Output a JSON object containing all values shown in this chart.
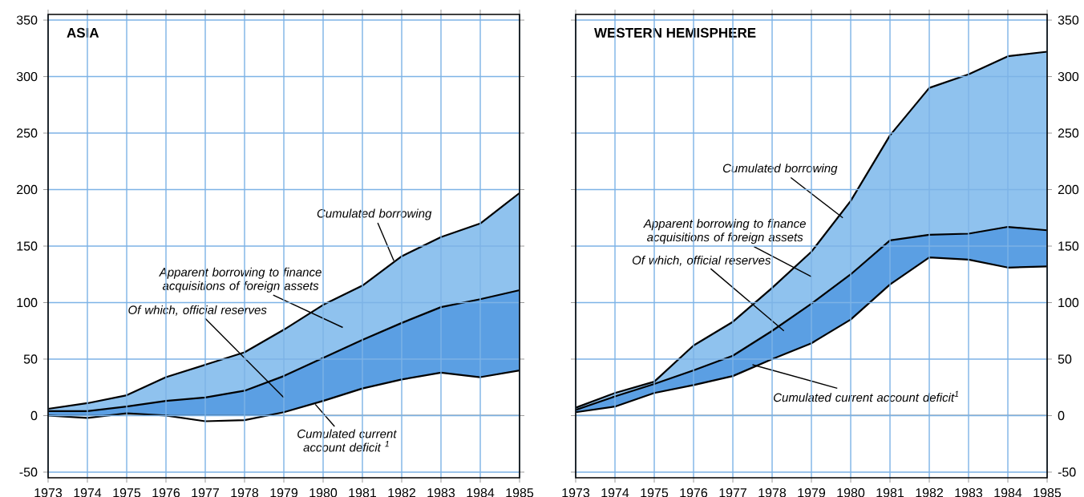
{
  "chart_data": [
    {
      "type": "area",
      "title": "ASIA",
      "x": [
        1973,
        1974,
        1975,
        1976,
        1977,
        1978,
        1979,
        1980,
        1981,
        1982,
        1983,
        1984,
        1985
      ],
      "xlim": [
        1973,
        1985
      ],
      "xticks": [
        1973,
        1974,
        1975,
        1976,
        1977,
        1978,
        1979,
        1980,
        1981,
        1982,
        1983,
        1984,
        1985
      ],
      "ylim": [
        -55,
        355
      ],
      "yticks": [
        -50,
        0,
        50,
        100,
        150,
        200,
        250,
        300,
        350
      ],
      "grid": true,
      "series": [
        {
          "type": "area",
          "color": "#8fc2ee",
          "values": [
            6,
            11,
            18,
            34,
            45,
            56,
            76,
            98,
            115,
            141,
            158,
            170,
            197
          ]
        },
        {
          "type": "area",
          "color": "#5b9fe3",
          "values": [
            4,
            4,
            8,
            13,
            16,
            22,
            35,
            51,
            67,
            82,
            96,
            103,
            111
          ]
        },
        {
          "type": "area",
          "color": "#ffffff",
          "values": [
            0,
            -2,
            2,
            0,
            -5,
            -4,
            3,
            13,
            24,
            32,
            38,
            34,
            40
          ]
        }
      ],
      "ref_lines": [
        {
          "axis": "y",
          "value": 0
        }
      ],
      "annotations": [
        {
          "text": "Cumulated borrowing",
          "x": 1981.8,
          "y": 137
        },
        "Apparent borrowing to finance acquisitions of foreign assets",
        "Of which, official reserves",
        {
          "text": "Cumulated current account deficit $^{1}$",
          "x": 1979.8,
          "y": 10
        }
      ]
    },
    {
      "type": "area",
      "title": "WESTERN HEMISPHERE",
      "x": [
        1973,
        1974,
        1975,
        1976,
        1977,
        1978,
        1979,
        1980,
        1981,
        1982,
        1983,
        1984,
        1985
      ],
      "xlim": [
        1973,
        1985
      ],
      "xticks": [
        1973,
        1974,
        1975,
        1976,
        1977,
        1978,
        1979,
        1980,
        1981,
        1982,
        1983,
        1984,
        1985
      ],
      "ylim": [
        -55,
        355
      ],
      "yticks": [
        -50,
        0,
        50,
        100,
        150,
        200,
        250,
        300,
        350
      ],
      "grid": true,
      "series": [
        {
          "type": "area",
          "color": "#8fc2ee",
          "values": [
            7,
            20,
            30,
            62,
            83,
            113,
            145,
            190,
            248,
            290,
            302,
            318,
            322
          ]
        },
        {
          "type": "area",
          "color": "#5b9fe3",
          "values": [
            5,
            17,
            28,
            40,
            53,
            75,
            99,
            125,
            155,
            160,
            161,
            167,
            164
          ]
        },
        {
          "type": "area",
          "color": "#ffffff",
          "values": [
            3,
            8,
            20,
            27,
            35,
            50,
            64,
            85,
            116,
            140,
            138,
            131,
            132
          ]
        }
      ],
      "ref_lines": [
        {
          "axis": "y",
          "value": 0
        }
      ],
      "annotations": [
        {
          "text": "Cumulated borrowing",
          "x": 1979.8,
          "y": 175
        },
        "Apparent borrowing to finance acquisitions of foreign assets",
        "Of which, official reserves",
        {
          "text": "Cumulated current account deficit$^{1}$",
          "x": 1977.5,
          "y": 45
        }
      ]
    }
  ]
}
